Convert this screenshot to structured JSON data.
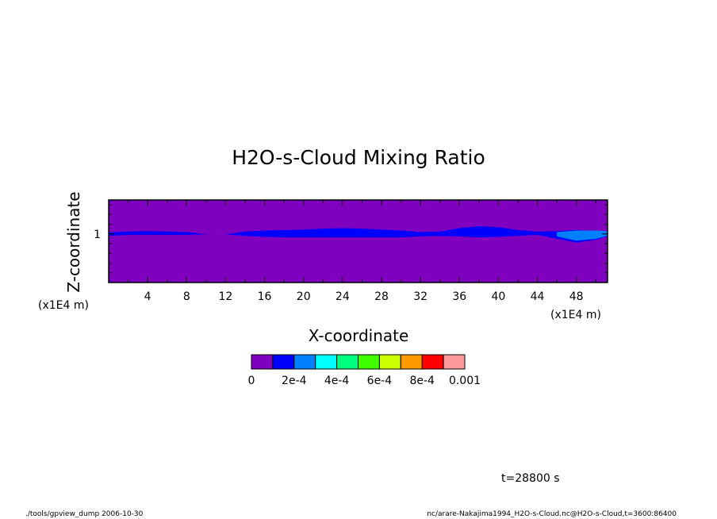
{
  "chart_data": {
    "type": "heatmap",
    "title": "H2O-s-Cloud Mixing Ratio",
    "xlabel": "X-coordinate",
    "ylabel": "Z-coordinate",
    "x_unit": "(x1E4 m)",
    "y_unit": "(x1E4 m)",
    "xlim": [
      0,
      51.2
    ],
    "ylim": [
      0,
      1.7
    ],
    "x_ticks": [
      "4",
      "8",
      "12",
      "16",
      "20",
      "24",
      "28",
      "32",
      "36",
      "40",
      "44",
      "48"
    ],
    "y_ticks": [
      "1"
    ],
    "colorbar": {
      "levels": [
        0,
        0.0001,
        0.0002,
        0.0003,
        0.0004,
        0.0005,
        0.0006,
        0.0007,
        0.0008,
        0.0009,
        0.001
      ],
      "colors": [
        "#7f00bf",
        "#0000ff",
        "#0080ff",
        "#00ffff",
        "#00ff80",
        "#40ff00",
        "#ccff00",
        "#ff9900",
        "#ff0000",
        "#ff9999"
      ],
      "labels": [
        "0",
        "2e-4",
        "4e-4",
        "6e-4",
        "8e-4",
        "0.001"
      ]
    },
    "cloud_layer": {
      "comment_free": true,
      "x": [
        0,
        2,
        4,
        6,
        8,
        10,
        12,
        14,
        16,
        18,
        20,
        22,
        24,
        26,
        28,
        30,
        32,
        34,
        36,
        38,
        40,
        42,
        44,
        46,
        48,
        50,
        51.2
      ],
      "z_top": [
        1.03,
        1.05,
        1.06,
        1.05,
        1.04,
        0.99,
        0.99,
        1.05,
        1.07,
        1.08,
        1.09,
        1.11,
        1.12,
        1.11,
        1.09,
        1.07,
        1.04,
        1.05,
        1.12,
        1.16,
        1.14,
        1.08,
        1.05,
        1.06,
        1.08,
        1.06,
        1.06
      ],
      "z_bottom": [
        0.96,
        0.98,
        0.98,
        0.98,
        0.98,
        0.99,
        0.99,
        0.96,
        0.94,
        0.93,
        0.93,
        0.93,
        0.93,
        0.93,
        0.93,
        0.93,
        0.95,
        0.96,
        0.95,
        0.93,
        0.94,
        0.96,
        0.98,
        0.9,
        0.82,
        0.88,
        0.95
      ],
      "level_index": 1,
      "patch": {
        "x": [
          46,
          48,
          50,
          51.2
        ],
        "z_top": [
          1.04,
          1.07,
          1.07,
          1.06
        ],
        "z_bottom": [
          0.95,
          0.86,
          0.9,
          0.96
        ],
        "level_index": 2
      }
    },
    "annotation": "t=28800 s"
  },
  "footer": {
    "left": "./tools/gpview_dump  2006-10-30",
    "right": "nc/arare-Nakajima1994_H2O-s-Cloud.nc@H2O-s-Cloud,t=3600:86400"
  }
}
